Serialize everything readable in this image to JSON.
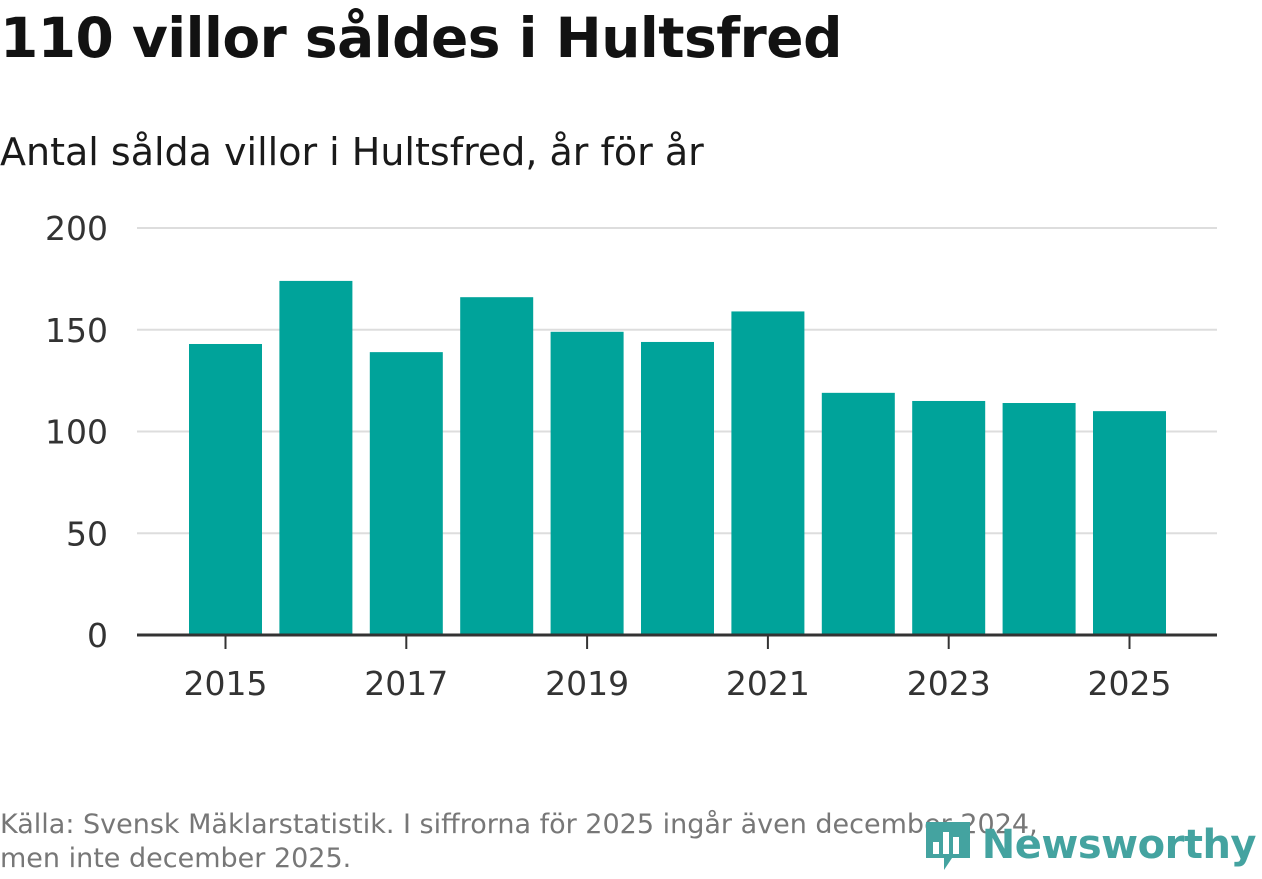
{
  "header": {
    "title": "110 villor såldes i Hultsfred",
    "subtitle": "Antal sålda villor i Hultsfred, år för år"
  },
  "chart_data": {
    "type": "bar",
    "x": [
      2015,
      2016,
      2017,
      2018,
      2019,
      2020,
      2021,
      2022,
      2023,
      2024,
      2025
    ],
    "values": [
      143,
      174,
      139,
      166,
      149,
      144,
      159,
      119,
      115,
      114,
      110
    ],
    "x_tick_labels": [
      "2015",
      "2017",
      "2019",
      "2021",
      "2023",
      "2025"
    ],
    "y_ticks": [
      0,
      50,
      100,
      150,
      200
    ],
    "y_tick_labels": [
      "0",
      "50",
      "100",
      "150",
      "200"
    ],
    "ylim": [
      0,
      200
    ],
    "bar_color": "#00a39a",
    "grid": true,
    "title": "110 villor såldes i Hultsfred",
    "subtitle": "Antal sålda villor i Hultsfred, år för år",
    "xlabel": "",
    "ylabel": ""
  },
  "footer": {
    "source_line1": "Källa: Svensk Mäklarstatistik. I siffrorna för 2025 ingår även december 2024,",
    "source_line2": "men inte december 2025."
  },
  "brand": {
    "name": "Newsworthy",
    "icon": "bar-chart-pin-icon",
    "color": "#44a3a0"
  }
}
